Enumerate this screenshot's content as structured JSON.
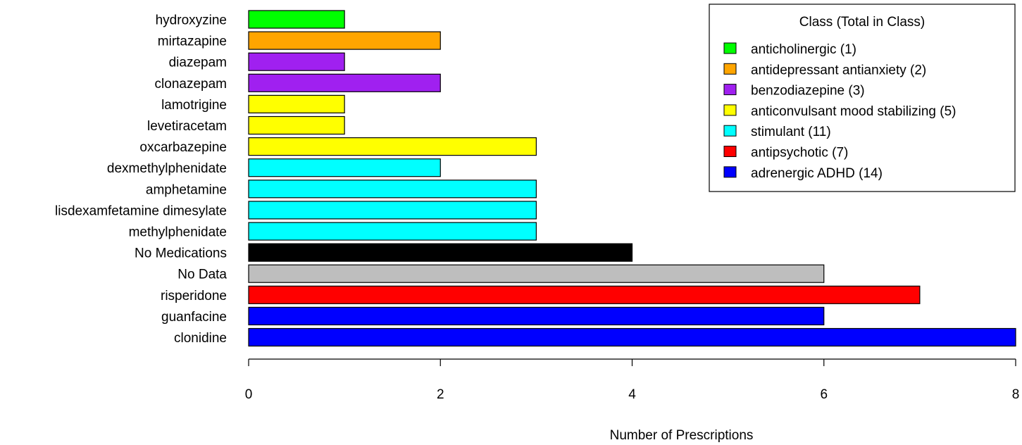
{
  "chart_data": {
    "type": "bar",
    "orientation": "horizontal",
    "title": "",
    "xlabel": "Number of Prescriptions",
    "ylabel": "",
    "xlim": [
      0,
      8
    ],
    "xticks": [
      0,
      2,
      4,
      6,
      8
    ],
    "grid": false,
    "legend_placement": "top-right",
    "categories": [
      "hydroxyzine",
      "mirtazapine",
      "diazepam",
      "clonazepam",
      "lamotrigine",
      "levetiracetam",
      "oxcarbazepine",
      "dexmethylphenidate",
      "amphetamine",
      "lisdexamfetamine dimesylate",
      "methylphenidate",
      "No Medications",
      "No Data",
      "risperidone",
      "guanfacine",
      "clonidine"
    ],
    "values": [
      1,
      2,
      1,
      2,
      1,
      1,
      3,
      2,
      3,
      3,
      3,
      4,
      6,
      7,
      6,
      8
    ],
    "bar_colors": [
      "#00ff00",
      "#ffa500",
      "#a020f0",
      "#a020f0",
      "#ffff00",
      "#ffff00",
      "#ffff00",
      "#00ffff",
      "#00ffff",
      "#00ffff",
      "#00ffff",
      "#000000",
      "#bebebe",
      "#ff0000",
      "#0000ff",
      "#0000ff"
    ],
    "legend": {
      "title": "Class (Total in Class)",
      "entries": [
        {
          "label": "anticholinergic (1)",
          "color": "#00ff00"
        },
        {
          "label": "antidepressant antianxiety (2)",
          "color": "#ffa500"
        },
        {
          "label": "benzodiazepine (3)",
          "color": "#a020f0"
        },
        {
          "label": "anticonvulsant mood stabilizing (5)",
          "color": "#ffff00"
        },
        {
          "label": "stimulant (11)",
          "color": "#00ffff"
        },
        {
          "label": "antipsychotic (7)",
          "color": "#ff0000"
        },
        {
          "label": "adrenergic ADHD (14)",
          "color": "#0000ff"
        }
      ]
    }
  }
}
